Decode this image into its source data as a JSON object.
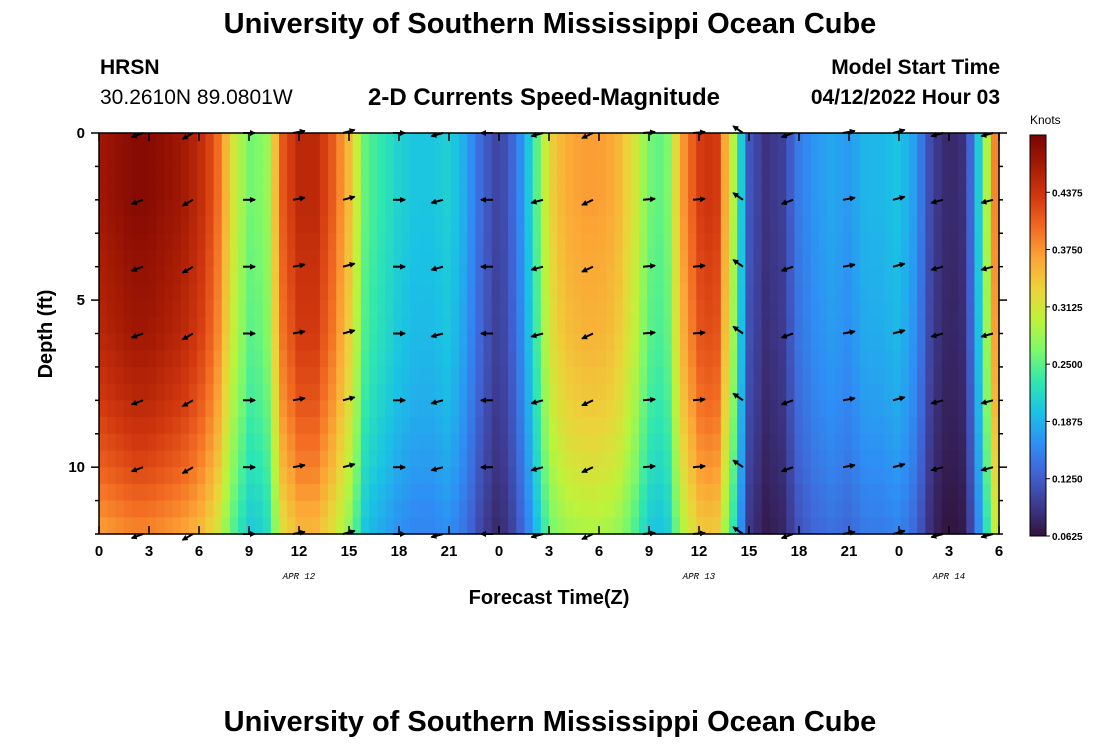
{
  "header": {
    "title": "University of Southern Mississippi Ocean Cube",
    "station": "HRSN",
    "coordinates": "30.2610N  89.0801W",
    "chart_title": "2-D Currents Speed-Magnitude",
    "model_start_label": "Model Start Time",
    "model_start_value": "04/12/2022 Hour 03"
  },
  "footer": {
    "title": "University of Southern Mississippi Ocean Cube"
  },
  "chart_data": {
    "type": "heatmap",
    "title": "2-D Currents Speed-Magnitude",
    "xlabel": "Forecast Time(Z)",
    "ylabel": "Depth (ft)",
    "x_range_hours": [
      0,
      54
    ],
    "y_range_ft": [
      0,
      12
    ],
    "y_inverted": true,
    "xticks": [
      {
        "hour": 0,
        "label": "0"
      },
      {
        "hour": 3,
        "label": "3"
      },
      {
        "hour": 6,
        "label": "6"
      },
      {
        "hour": 9,
        "label": "9"
      },
      {
        "hour": 12,
        "label": "12"
      },
      {
        "hour": 15,
        "label": "15"
      },
      {
        "hour": 18,
        "label": "18"
      },
      {
        "hour": 21,
        "label": "21"
      },
      {
        "hour": 24,
        "label": "0"
      },
      {
        "hour": 27,
        "label": "3"
      },
      {
        "hour": 30,
        "label": "6"
      },
      {
        "hour": 33,
        "label": "9"
      },
      {
        "hour": 36,
        "label": "12"
      },
      {
        "hour": 39,
        "label": "15"
      },
      {
        "hour": 42,
        "label": "18"
      },
      {
        "hour": 45,
        "label": "21"
      },
      {
        "hour": 48,
        "label": "0"
      },
      {
        "hour": 51,
        "label": "3"
      },
      {
        "hour": 54,
        "label": "6"
      }
    ],
    "date_labels": [
      {
        "hour": 12,
        "label": "APR 12"
      },
      {
        "hour": 36,
        "label": "APR 13"
      },
      {
        "hour": 51,
        "label": "APR 14"
      }
    ],
    "yticks": [
      {
        "depth": 0,
        "label": "0"
      },
      {
        "depth": 5,
        "label": "5"
      },
      {
        "depth": 10,
        "label": "10"
      }
    ],
    "colorbar": {
      "title": "Knots",
      "min": 0.0625,
      "max": 0.5,
      "ticks": [
        "0.0625",
        "0.1250",
        "0.1875",
        "0.2500",
        "0.3125",
        "0.3750",
        "0.4375"
      ],
      "stops": [
        "#30123b",
        "#3e3a8f",
        "#4163d4",
        "#2f8ef5",
        "#1ac2e4",
        "#2fe7b0",
        "#7cf86b",
        "#bdf33a",
        "#ecd33a",
        "#fca636",
        "#f26a22",
        "#d2380f",
        "#a61b04",
        "#7a0403"
      ]
    },
    "time_profile_hours": [
      0,
      1,
      2,
      3,
      4,
      5,
      6,
      7,
      8,
      9,
      10,
      11,
      12,
      13,
      14,
      15,
      16,
      17,
      18,
      19,
      20,
      21,
      22,
      23,
      24,
      25,
      26,
      27,
      28,
      29,
      30,
      31,
      32,
      33,
      34,
      35,
      36,
      37,
      38,
      39,
      40,
      41,
      42,
      43,
      44,
      45,
      46,
      47,
      48,
      49,
      50,
      51,
      52,
      53,
      54
    ],
    "surface_speed_knots": [
      0.47,
      0.48,
      0.49,
      0.49,
      0.48,
      0.47,
      0.45,
      0.41,
      0.32,
      0.26,
      0.27,
      0.41,
      0.45,
      0.45,
      0.41,
      0.35,
      0.25,
      0.23,
      0.21,
      0.2,
      0.2,
      0.21,
      0.18,
      0.13,
      0.1,
      0.14,
      0.22,
      0.33,
      0.36,
      0.37,
      0.37,
      0.36,
      0.32,
      0.26,
      0.25,
      0.37,
      0.43,
      0.44,
      0.3,
      0.12,
      0.09,
      0.1,
      0.15,
      0.17,
      0.18,
      0.17,
      0.19,
      0.19,
      0.2,
      0.17,
      0.1,
      0.08,
      0.09,
      0.24,
      0.43
    ],
    "depth_attenuation": [
      {
        "depth": 0,
        "factor": 1.0
      },
      {
        "depth": 2,
        "factor": 1.0
      },
      {
        "depth": 4,
        "factor": 0.98
      },
      {
        "depth": 6,
        "factor": 0.96
      },
      {
        "depth": 8,
        "factor": 0.92
      },
      {
        "depth": 10,
        "factor": 0.86
      },
      {
        "depth": 12,
        "factor": 0.78
      }
    ],
    "vector_rows_ft": [
      0,
      2,
      4,
      6,
      8,
      10,
      12
    ],
    "vector_hours": [
      3,
      6,
      9,
      12,
      15,
      18,
      21,
      24,
      27,
      30,
      33,
      36,
      39,
      42,
      45,
      48,
      51,
      54
    ],
    "vector_direction_deg": [
      200,
      210,
      0,
      10,
      15,
      0,
      195,
      180,
      195,
      205,
      5,
      5,
      145,
      200,
      10,
      15,
      195,
      195
    ]
  }
}
